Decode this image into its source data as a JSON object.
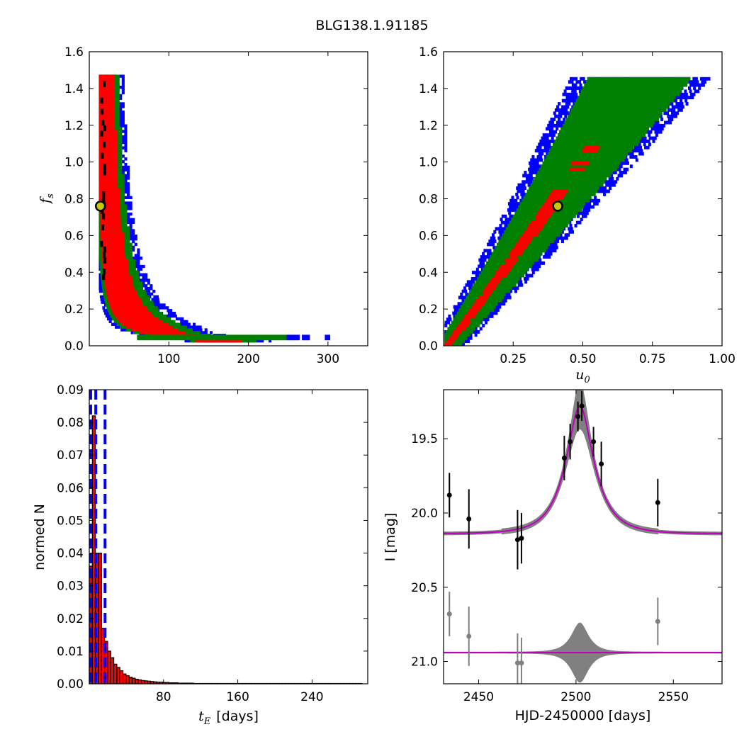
{
  "figure": {
    "title": "BLG138.1.91185"
  },
  "chart_data": [
    {
      "type": "heatmap",
      "panel": "top-left",
      "xlabel": "",
      "ylabel_symbol": "f",
      "ylabel_sub": "s",
      "xlim": [
        0,
        350
      ],
      "ylim": [
        0,
        1.6
      ],
      "xticks": [
        100,
        200,
        300
      ],
      "yticks": [
        0.0,
        0.2,
        0.4,
        0.6,
        0.8,
        1.0,
        1.2,
        1.4,
        1.6
      ],
      "colors": {
        "outer": "#0000ff",
        "middle": "#008000",
        "inner": "#ff0000",
        "core": "#000000",
        "marker": "#c8c800"
      },
      "best_fit": {
        "x": 14,
        "y": 0.76
      },
      "tick_text": [
        "100",
        "200",
        "300",
        "0.0",
        "0.2",
        "0.4",
        "0.6",
        "0.8",
        "1.0",
        "1.2",
        "1.4",
        "1.6"
      ]
    },
    {
      "type": "heatmap",
      "panel": "top-right",
      "xlabel_symbol": "u",
      "xlabel_sub": "0",
      "ylabel": "",
      "xlim": [
        0,
        1.0
      ],
      "ylim": [
        0,
        1.6
      ],
      "xticks": [
        0.25,
        0.5,
        0.75,
        1.0
      ],
      "yticks": [
        0.0,
        0.2,
        0.4,
        0.6,
        0.8,
        1.0,
        1.2,
        1.4,
        1.6
      ],
      "colors": {
        "outer": "#0000ff",
        "middle": "#008000",
        "inner": "#ff0000",
        "marker": "#c8c800"
      },
      "best_fit": {
        "x": 0.41,
        "y": 0.76
      },
      "tick_text": [
        "0.25",
        "0.50",
        "0.75",
        "1.00",
        "0.0",
        "0.2",
        "0.4",
        "0.6",
        "0.8",
        "1.0",
        "1.2",
        "1.4",
        "1.6"
      ]
    },
    {
      "type": "bar",
      "panel": "bottom-left",
      "xlabel_symbol": "t",
      "xlabel_sub": "E",
      "xlabel_unit": "[days]",
      "ylabel": "normed N",
      "xlim": [
        0,
        300
      ],
      "ylim": [
        0,
        0.09
      ],
      "xticks": [
        80,
        160,
        240
      ],
      "yticks": [
        0.0,
        0.01,
        0.02,
        0.03,
        0.04,
        0.05,
        0.06,
        0.07,
        0.08,
        0.09
      ],
      "bin_width": 3.3,
      "bin_start": 0,
      "values": [
        0.036,
        0.082,
        0.04,
        0.04,
        0.017,
        0.013,
        0.01,
        0.008,
        0.006,
        0.005,
        0.004,
        0.003,
        0.0025,
        0.002,
        0.0017,
        0.0014,
        0.0012,
        0.001,
        0.0009,
        0.0008,
        0.0007,
        0.0006,
        0.0005,
        0.0005,
        0.0004,
        0.0004,
        0.0003,
        0.0003,
        0.0003,
        0.0002,
        0.0002,
        0.0002,
        0.0002,
        0.0002,
        0.0001,
        0.0001,
        0.0001,
        0.0001,
        0.0001,
        0.0001,
        0.0001,
        0.0001,
        0.0001,
        0.0001,
        0.0001,
        0.0001,
        0.0001,
        0.0001,
        0.0001,
        0.0001,
        0.0001,
        0.0001,
        0.0001,
        0.0001,
        0.0001,
        0.0001,
        0.0001,
        0.0001,
        0.0001,
        0.0001,
        0.0001,
        0.0001,
        0.0001,
        0.0001,
        0.0001,
        0.0001,
        0.0001,
        0.0001,
        0.0001,
        0.0001,
        0.0001,
        0.0001,
        0.0001,
        0.0001,
        0.0001,
        0.0001,
        0.0001,
        0.0001,
        0.0001,
        0.0001,
        0.0001,
        0.0001,
        0.0001,
        0.0001,
        0.0001,
        0.0001,
        0.0001,
        0.0001,
        0.0001
      ],
      "vlines": [
        {
          "x": 1.5,
          "style": "dashed"
        },
        {
          "x": 7,
          "style": "dashed"
        },
        {
          "x": 17,
          "style": "dashed"
        }
      ],
      "colors": {
        "bar": "#ff0000",
        "edge": "#000000",
        "vline": "#0000ff"
      },
      "tick_text": [
        "80",
        "160",
        "240",
        "0.00",
        "0.01",
        "0.02",
        "0.03",
        "0.04",
        "0.05",
        "0.06",
        "0.07",
        "0.08",
        "0.09"
      ]
    },
    {
      "type": "scatter",
      "panel": "bottom-right",
      "xlabel": "HJD-2450000 [days]",
      "ylabel": "I [mag]",
      "xlim": [
        2432,
        2575
      ],
      "ylim": [
        21.15,
        19.17
      ],
      "yinverted": true,
      "xticks": [
        2450,
        2500,
        2550
      ],
      "yticks": [
        19.5,
        20.0,
        20.5,
        21.0
      ],
      "model": {
        "t0": 2502,
        "tE": 14,
        "u0": 0.41,
        "fs": 0.76,
        "baseline": 20.14
      },
      "residual_offset": 20.94,
      "points": [
        {
          "x": 2435,
          "y": 19.88,
          "err": 0.15
        },
        {
          "x": 2445,
          "y": 20.04,
          "err": 0.2
        },
        {
          "x": 2470,
          "y": 20.18,
          "err": 0.2
        },
        {
          "x": 2472,
          "y": 20.17,
          "err": 0.17
        },
        {
          "x": 2494,
          "y": 19.63,
          "err": 0.15
        },
        {
          "x": 2497,
          "y": 19.52,
          "err": 0.12
        },
        {
          "x": 2501,
          "y": 19.35,
          "err": 0.1
        },
        {
          "x": 2503,
          "y": 19.28,
          "err": 0.1
        },
        {
          "x": 2509,
          "y": 19.52,
          "err": 0.1
        },
        {
          "x": 2513,
          "y": 19.67,
          "err": 0.15
        },
        {
          "x": 2542,
          "y": 19.93,
          "err": 0.16
        }
      ],
      "residual_points": [
        {
          "x": 2435,
          "y": 20.68,
          "err": 0.15
        },
        {
          "x": 2445,
          "y": 20.83,
          "err": 0.2
        },
        {
          "x": 2470,
          "y": 21.01,
          "err": 0.2
        },
        {
          "x": 2472,
          "y": 21.01,
          "err": 0.17
        },
        {
          "x": 2542,
          "y": 20.73,
          "err": 0.16
        }
      ],
      "colors": {
        "model": "#c000c0",
        "band": "#808080",
        "data": "#000000",
        "residual": "#808080"
      },
      "tick_text": [
        "2450",
        "2500",
        "2550",
        "19.5",
        "20.0",
        "20.5",
        "21.0"
      ]
    }
  ]
}
